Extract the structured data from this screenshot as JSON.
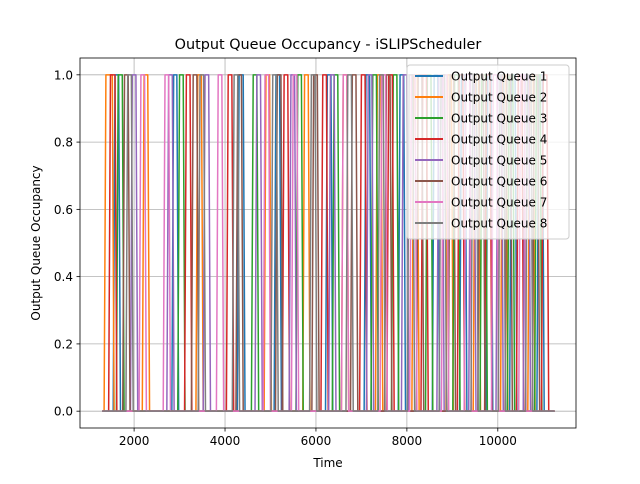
{
  "chart_data": {
    "type": "line",
    "title": "Output Queue Occupancy - iSLIPScheduler",
    "xlabel": "Time",
    "ylabel": "Output Queue Occupancy",
    "xlim": [
      810,
      11720
    ],
    "ylim": [
      -0.05,
      1.05
    ],
    "xticks": [
      2000,
      4000,
      6000,
      8000,
      10000
    ],
    "xtick_labels": [
      "2000",
      "4000",
      "6000",
      "8000",
      "10000"
    ],
    "yticks": [
      0.0,
      0.2,
      0.4,
      0.6,
      0.8,
      1.0
    ],
    "ytick_labels": [
      "0.0",
      "0.2",
      "0.4",
      "0.6",
      "0.8",
      "1.0"
    ],
    "grid": true,
    "legend_position": "top-right",
    "series": [
      {
        "name": "Output Queue 1",
        "color": "#1f77b4",
        "x_start": 1300,
        "x_end": 11250,
        "pulses": [
          [
            1580,
            1660
          ],
          [
            2870,
            2940
          ],
          [
            4310,
            4400
          ],
          [
            5120,
            5200
          ],
          [
            6250,
            6330
          ],
          [
            7100,
            7180
          ],
          [
            7850,
            7930
          ],
          [
            8600,
            8680
          ],
          [
            9200,
            9280
          ],
          [
            9780,
            9850
          ],
          [
            10300,
            10380
          ],
          [
            10900,
            10980
          ]
        ]
      },
      {
        "name": "Output Queue 2",
        "color": "#ff7f0e",
        "x_start": 1300,
        "x_end": 11250,
        "pulses": [
          [
            1380,
            1520
          ],
          [
            2220,
            2300
          ],
          [
            3400,
            3480
          ],
          [
            4900,
            4980
          ],
          [
            5750,
            5830
          ],
          [
            6600,
            6680
          ],
          [
            7350,
            7430
          ],
          [
            8150,
            8230
          ],
          [
            8900,
            8980
          ],
          [
            9500,
            9580
          ],
          [
            10100,
            10180
          ],
          [
            10700,
            10780
          ]
        ]
      },
      {
        "name": "Output Queue 3",
        "color": "#2ca02c",
        "x_start": 1300,
        "x_end": 11250,
        "pulses": [
          [
            1650,
            1740
          ],
          [
            3000,
            3080
          ],
          [
            4620,
            4700
          ],
          [
            5600,
            5680
          ],
          [
            6400,
            6480
          ],
          [
            7250,
            7330
          ],
          [
            7700,
            7780
          ],
          [
            8450,
            8530
          ],
          [
            9050,
            9130
          ],
          [
            9650,
            9730
          ],
          [
            10250,
            10330
          ],
          [
            10850,
            10930
          ]
        ]
      },
      {
        "name": "Output Queue 4",
        "color": "#d62728",
        "x_start": 1300,
        "x_end": 11250,
        "pulses": [
          [
            1480,
            1580
          ],
          [
            3150,
            3230
          ],
          [
            4070,
            4150
          ],
          [
            5300,
            5380
          ],
          [
            6150,
            6230
          ],
          [
            7000,
            7080
          ],
          [
            7600,
            7680
          ],
          [
            8350,
            8430
          ],
          [
            9150,
            9230
          ],
          [
            9750,
            9830
          ],
          [
            10450,
            10530
          ],
          [
            11000,
            11080
          ]
        ]
      },
      {
        "name": "Output Queue 5",
        "color": "#9467bd",
        "x_start": 1300,
        "x_end": 11250,
        "pulses": [
          [
            1960,
            2040
          ],
          [
            2760,
            2840
          ],
          [
            3560,
            3640
          ],
          [
            4700,
            4780
          ],
          [
            5450,
            5530
          ],
          [
            6320,
            6400
          ],
          [
            7150,
            7230
          ],
          [
            7920,
            8000
          ],
          [
            8700,
            8780
          ],
          [
            9400,
            9480
          ],
          [
            10000,
            10080
          ],
          [
            10600,
            10680
          ]
        ]
      },
      {
        "name": "Output Queue 6",
        "color": "#8c564b",
        "x_start": 1300,
        "x_end": 11250,
        "pulses": [
          [
            1790,
            1870
          ],
          [
            3300,
            3380
          ],
          [
            4280,
            4360
          ],
          [
            5150,
            5230
          ],
          [
            5950,
            6030
          ],
          [
            6800,
            6880
          ],
          [
            7550,
            7630
          ],
          [
            8250,
            8330
          ],
          [
            8950,
            9030
          ],
          [
            9600,
            9680
          ],
          [
            10200,
            10280
          ],
          [
            10800,
            10880
          ]
        ]
      },
      {
        "name": "Output Queue 7",
        "color": "#e377c2",
        "x_start": 1300,
        "x_end": 11250,
        "pulses": [
          [
            2150,
            2230
          ],
          [
            2680,
            2760
          ],
          [
            3850,
            3930
          ],
          [
            4880,
            4960
          ],
          [
            5500,
            5580
          ],
          [
            6600,
            6680
          ],
          [
            7450,
            7530
          ],
          [
            8100,
            8180
          ],
          [
            8800,
            8880
          ],
          [
            9300,
            9380
          ],
          [
            9900,
            9980
          ],
          [
            10500,
            10580
          ]
        ]
      },
      {
        "name": "Output Queue 8",
        "color": "#7f7f7f",
        "x_start": 1300,
        "x_end": 11250,
        "pulses": [
          [
            1860,
            1940
          ],
          [
            3450,
            3530
          ],
          [
            4200,
            4280
          ],
          [
            5050,
            5130
          ],
          [
            5900,
            5980
          ],
          [
            6700,
            6780
          ],
          [
            7400,
            7480
          ],
          [
            8050,
            8130
          ],
          [
            8750,
            8830
          ],
          [
            9450,
            9530
          ],
          [
            10050,
            10130
          ],
          [
            10650,
            10730
          ]
        ]
      }
    ]
  }
}
